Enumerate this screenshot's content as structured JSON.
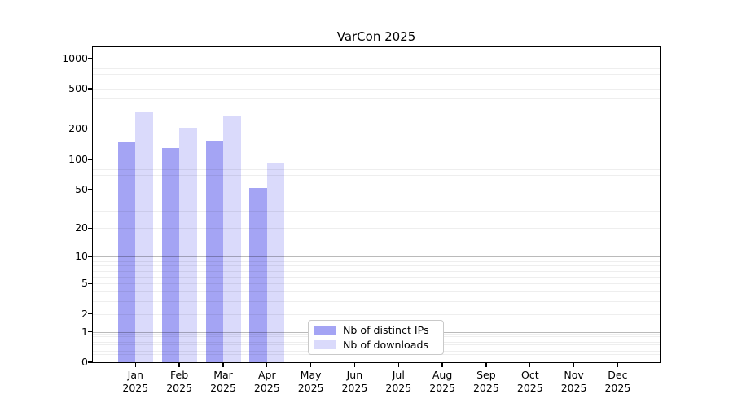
{
  "chart_data": {
    "type": "bar",
    "title": "VarCon 2025",
    "categories": [
      {
        "month": "Jan",
        "year": "2025"
      },
      {
        "month": "Feb",
        "year": "2025"
      },
      {
        "month": "Mar",
        "year": "2025"
      },
      {
        "month": "Apr",
        "year": "2025"
      },
      {
        "month": "May",
        "year": "2025"
      },
      {
        "month": "Jun",
        "year": "2025"
      },
      {
        "month": "Jul",
        "year": "2025"
      },
      {
        "month": "Aug",
        "year": "2025"
      },
      {
        "month": "Sep",
        "year": "2025"
      },
      {
        "month": "Oct",
        "year": "2025"
      },
      {
        "month": "Nov",
        "year": "2025"
      },
      {
        "month": "Dec",
        "year": "2025"
      }
    ],
    "series": [
      {
        "name": "Nb of distinct IPs",
        "color": "#a4a4f4",
        "values": [
          148,
          129,
          153,
          51,
          0,
          0,
          0,
          0,
          0,
          0,
          0,
          0
        ]
      },
      {
        "name": "Nb of downloads",
        "color": "#dadafb",
        "values": [
          290,
          207,
          268,
          92,
          0,
          0,
          0,
          0,
          0,
          0,
          0,
          0
        ]
      }
    ],
    "yscale": "log1p",
    "ylim": [
      0,
      1280
    ],
    "yticks": [
      0,
      1,
      2,
      5,
      10,
      20,
      50,
      100,
      200,
      500,
      1000
    ],
    "minor_grid_values": [
      0.2,
      0.3,
      0.4,
      0.5,
      0.6,
      0.7,
      0.8,
      0.9,
      2,
      3,
      4,
      5,
      6,
      7,
      8,
      9,
      20,
      30,
      40,
      50,
      60,
      70,
      80,
      90,
      200,
      300,
      400,
      500,
      600,
      700,
      800,
      900
    ],
    "major_grid_values": [
      1,
      10,
      100,
      1000
    ],
    "grid": "both",
    "legend_position": "lower center",
    "xlabel": "",
    "ylabel": ""
  },
  "legend": {
    "items": [
      {
        "label": "Nb of distinct IPs",
        "swatch": "#a4a4f4"
      },
      {
        "label": "Nb of downloads",
        "swatch": "#dadafb"
      }
    ]
  },
  "colors": {
    "background": "#ffffff",
    "axis": "#000000",
    "major_grid": "#b9b9b9",
    "minor_grid": "#ededed",
    "legend_border": "#c9c9c9"
  }
}
